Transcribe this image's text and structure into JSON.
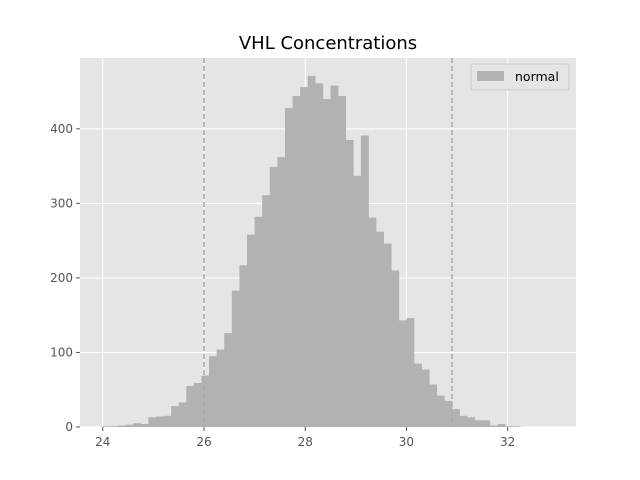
{
  "chart_data": {
    "type": "bar",
    "title": "VHL Concentrations",
    "xlabel": "",
    "ylabel": "",
    "xlim": [
      23.55,
      33.35
    ],
    "ylim": [
      0,
      495
    ],
    "xticks": [
      24,
      26,
      28,
      30,
      32
    ],
    "yticks": [
      0,
      100,
      200,
      300,
      400
    ],
    "grid": true,
    "legend": {
      "position": "top-right",
      "entries": [
        "normal"
      ]
    },
    "reference_lines": [
      26.0,
      30.9
    ],
    "bin_start": 24.0,
    "bin_width": 0.15,
    "series": [
      {
        "name": "normal",
        "color": "#b2b2b2",
        "values": [
          1,
          1,
          2,
          3,
          5,
          4,
          13,
          14,
          15,
          28,
          33,
          55,
          59,
          69,
          95,
          104,
          126,
          183,
          217,
          258,
          282,
          311,
          349,
          362,
          428,
          444,
          456,
          471,
          461,
          440,
          458,
          444,
          385,
          337,
          391,
          281,
          262,
          246,
          210,
          143,
          146,
          85,
          77,
          57,
          42,
          35,
          24,
          15,
          13,
          9,
          9,
          2,
          4,
          1,
          1
        ]
      }
    ]
  },
  "colors": {
    "plot_background": "#e5e5e5",
    "grid": "#ffffff",
    "bar": "#b2b2b2",
    "reference_line": "#aaaaaa"
  }
}
